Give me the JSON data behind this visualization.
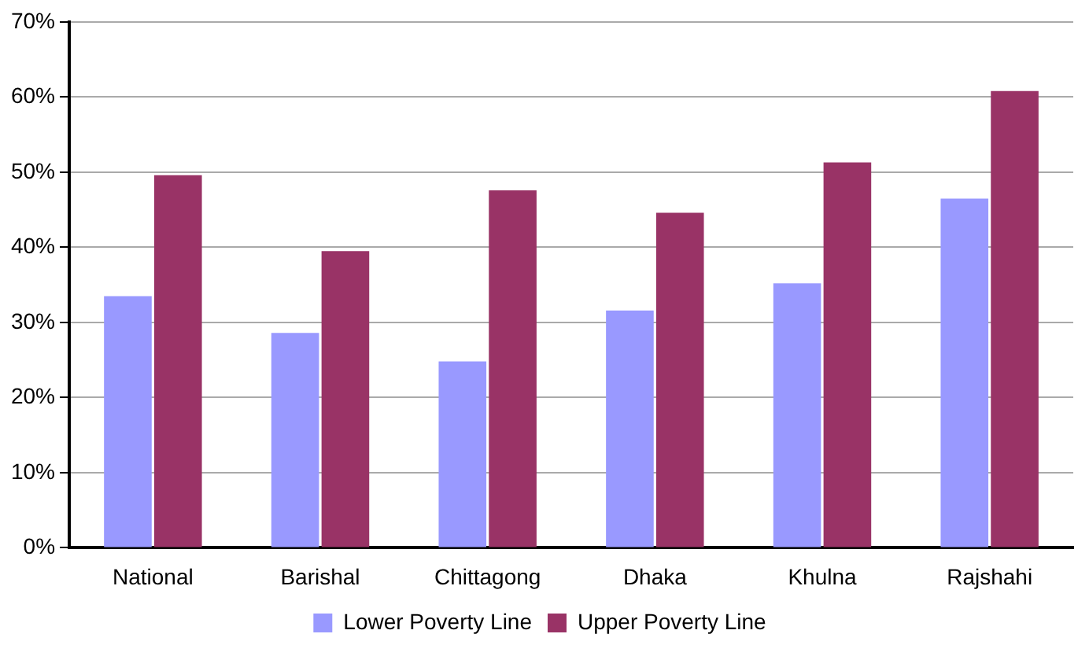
{
  "chart_data": {
    "type": "bar",
    "categories": [
      "National",
      "Barishal",
      "Chittagong",
      "Dhaka",
      "Khulna",
      "Rajshahi"
    ],
    "series": [
      {
        "name": "Lower Poverty Line",
        "color": "#9999ff",
        "values": [
          33.5,
          28.6,
          24.8,
          31.6,
          35.2,
          46.5
        ]
      },
      {
        "name": "Upper Poverty Line",
        "color": "#993366",
        "values": [
          49.6,
          39.5,
          47.6,
          44.6,
          51.3,
          60.8
        ]
      }
    ],
    "ylim": [
      0,
      70
    ],
    "yticks": [
      {
        "value": 0,
        "label": "0%"
      },
      {
        "value": 10,
        "label": "10%"
      },
      {
        "value": 20,
        "label": "20%"
      },
      {
        "value": 30,
        "label": "30%"
      },
      {
        "value": 40,
        "label": "40%"
      },
      {
        "value": 50,
        "label": "50%"
      },
      {
        "value": 60,
        "label": "60%"
      },
      {
        "value": 70,
        "label": "70%"
      }
    ],
    "grid": "y",
    "legend": "bottom"
  }
}
